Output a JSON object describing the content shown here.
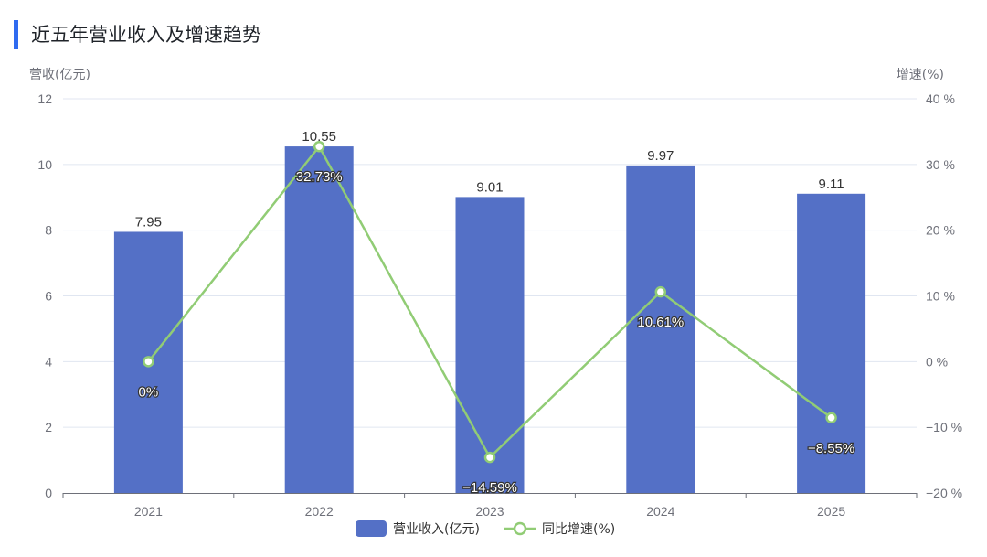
{
  "header": {
    "title": "近五年营业收入及增速趋势",
    "accent_color": "#2f6bf0"
  },
  "chart_data": {
    "type": "bar+line",
    "title": "近五年营业收入及增速趋势",
    "categories": [
      "2021",
      "2022",
      "2023",
      "2024",
      "2025"
    ],
    "series": [
      {
        "name": "营业收入(亿元)",
        "type": "bar",
        "axis": "left",
        "color": "#5470c6",
        "values": [
          7.95,
          10.55,
          9.01,
          9.97,
          9.11
        ],
        "labels": [
          "7.95",
          "10.55",
          "9.01",
          "9.97",
          "9.11"
        ]
      },
      {
        "name": "同比增速(%)",
        "type": "line",
        "axis": "right",
        "color": "#91cc75",
        "values": [
          0,
          32.73,
          -14.59,
          10.61,
          -8.55
        ],
        "labels": [
          "0%",
          "32.73%",
          "-14.59%",
          "10.61%",
          "-8.55%"
        ]
      }
    ],
    "y_left": {
      "name": "营收(亿元)",
      "range": [
        0,
        12
      ],
      "ticks": [
        "0",
        "2",
        "4",
        "6",
        "8",
        "10",
        "12"
      ]
    },
    "y_right": {
      "name": "增速(%)",
      "range": [
        -20,
        40
      ],
      "ticks": [
        "-20 %",
        "-10 %",
        "0 %",
        "10 %",
        "20 %",
        "30 %",
        "40 %"
      ]
    },
    "grid": true,
    "legend_position": "bottom",
    "legend": [
      "营业收入(亿元)",
      "同比增速(%)"
    ]
  }
}
